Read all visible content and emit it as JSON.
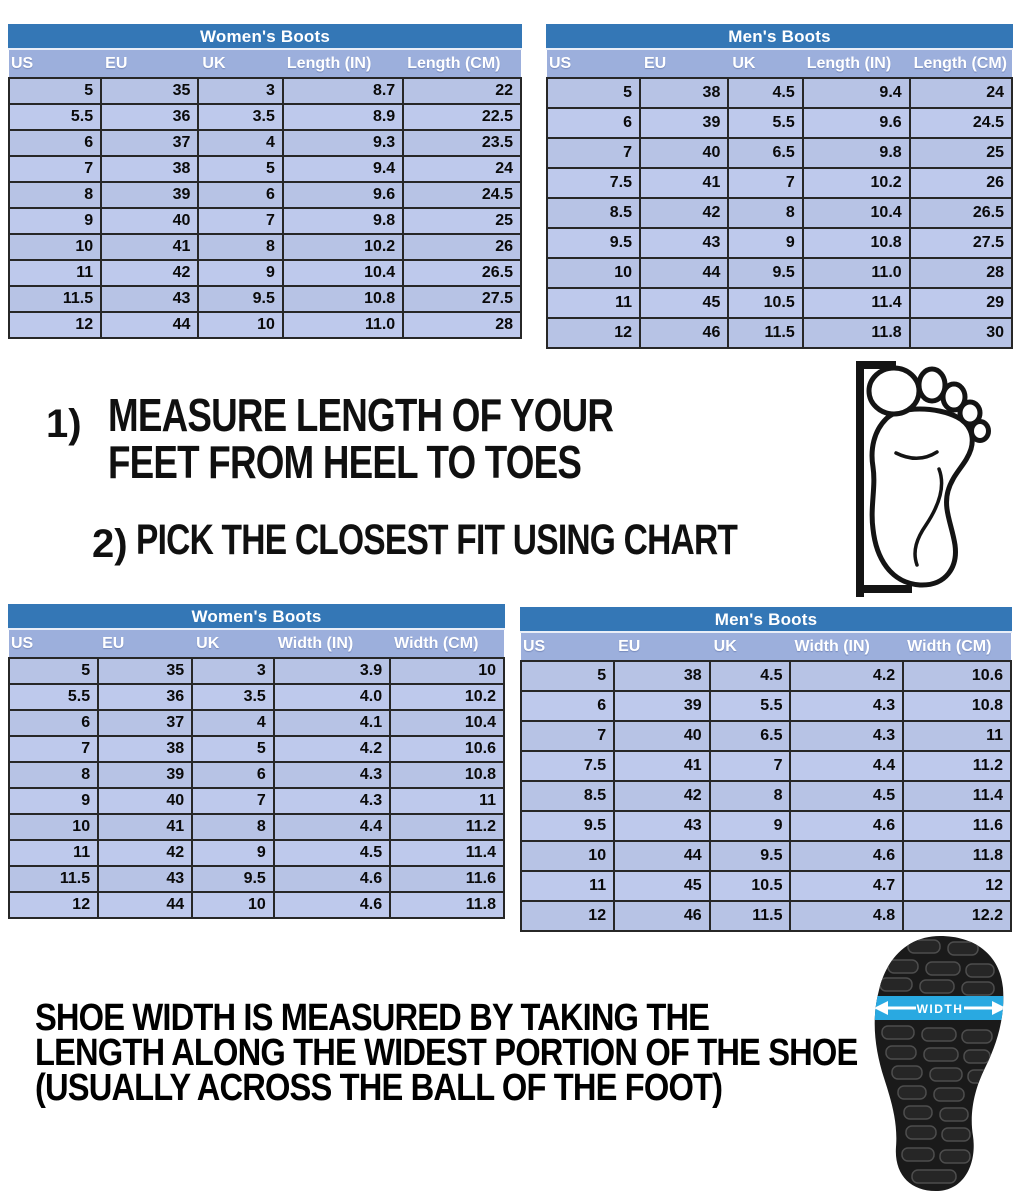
{
  "colors": {
    "title_bar": "#3477b6",
    "header_row": "#9cafdc",
    "row_light": "#b7c3e5",
    "row_alt": "#bec9ec",
    "grid_border": "#272727",
    "width_band": "#29a9e1"
  },
  "tables": {
    "womens_length": {
      "title": "Women's Boots",
      "headers": [
        "US",
        "EU",
        "UK",
        "Length (IN)",
        "Length (CM)"
      ],
      "rows": [
        [
          "5",
          "35",
          "3",
          "8.7",
          "22"
        ],
        [
          "5.5",
          "36",
          "3.5",
          "8.9",
          "22.5"
        ],
        [
          "6",
          "37",
          "4",
          "9.3",
          "23.5"
        ],
        [
          "7",
          "38",
          "5",
          "9.4",
          "24"
        ],
        [
          "8",
          "39",
          "6",
          "9.6",
          "24.5"
        ],
        [
          "9",
          "40",
          "7",
          "9.8",
          "25"
        ],
        [
          "10",
          "41",
          "8",
          "10.2",
          "26"
        ],
        [
          "11",
          "42",
          "9",
          "10.4",
          "26.5"
        ],
        [
          "11.5",
          "43",
          "9.5",
          "10.8",
          "27.5"
        ],
        [
          "12",
          "44",
          "10",
          "11.0",
          "28"
        ]
      ]
    },
    "mens_length": {
      "title": "Men's Boots",
      "headers": [
        "US",
        "EU",
        "UK",
        "Length (IN)",
        "Length (CM)"
      ],
      "rows": [
        [
          "5",
          "38",
          "4.5",
          "9.4",
          "24"
        ],
        [
          "6",
          "39",
          "5.5",
          "9.6",
          "24.5"
        ],
        [
          "7",
          "40",
          "6.5",
          "9.8",
          "25"
        ],
        [
          "7.5",
          "41",
          "7",
          "10.2",
          "26"
        ],
        [
          "8.5",
          "42",
          "8",
          "10.4",
          "26.5"
        ],
        [
          "9.5",
          "43",
          "9",
          "10.8",
          "27.5"
        ],
        [
          "10",
          "44",
          "9.5",
          "11.0",
          "28"
        ],
        [
          "11",
          "45",
          "10.5",
          "11.4",
          "29"
        ],
        [
          "12",
          "46",
          "11.5",
          "11.8",
          "30"
        ]
      ]
    },
    "womens_width": {
      "title": "Women's Boots",
      "headers": [
        "US",
        "EU",
        "UK",
        "Width (IN)",
        "Width (CM)"
      ],
      "rows": [
        [
          "5",
          "35",
          "3",
          "3.9",
          "10"
        ],
        [
          "5.5",
          "36",
          "3.5",
          "4.0",
          "10.2"
        ],
        [
          "6",
          "37",
          "4",
          "4.1",
          "10.4"
        ],
        [
          "7",
          "38",
          "5",
          "4.2",
          "10.6"
        ],
        [
          "8",
          "39",
          "6",
          "4.3",
          "10.8"
        ],
        [
          "9",
          "40",
          "7",
          "4.3",
          "11"
        ],
        [
          "10",
          "41",
          "8",
          "4.4",
          "11.2"
        ],
        [
          "11",
          "42",
          "9",
          "4.5",
          "11.4"
        ],
        [
          "11.5",
          "43",
          "9.5",
          "4.6",
          "11.6"
        ],
        [
          "12",
          "44",
          "10",
          "4.6",
          "11.8"
        ]
      ]
    },
    "mens_width": {
      "title": "Men's Boots",
      "headers": [
        "US",
        "EU",
        "UK",
        "Width (IN)",
        "Width (CM)"
      ],
      "rows": [
        [
          "5",
          "38",
          "4.5",
          "4.2",
          "10.6"
        ],
        [
          "6",
          "39",
          "5.5",
          "4.3",
          "10.8"
        ],
        [
          "7",
          "40",
          "6.5",
          "4.3",
          "11"
        ],
        [
          "7.5",
          "41",
          "7",
          "4.4",
          "11.2"
        ],
        [
          "8.5",
          "42",
          "8",
          "4.5",
          "11.4"
        ],
        [
          "9.5",
          "43",
          "9",
          "4.6",
          "11.6"
        ],
        [
          "10",
          "44",
          "9.5",
          "4.6",
          "11.8"
        ],
        [
          "11",
          "45",
          "10.5",
          "4.7",
          "12"
        ],
        [
          "12",
          "46",
          "11.5",
          "4.8",
          "12.2"
        ]
      ]
    }
  },
  "instructions": {
    "step1": {
      "num": "1)",
      "line1": "MEASURE LENGTH OF YOUR",
      "line2": "FEET FROM HEEL TO TOES"
    },
    "step2": {
      "num": "2)",
      "text": "PICK THE CLOSEST FIT USING CHART"
    }
  },
  "width_note": {
    "line1": "SHOE WIDTH IS MEASURED BY TAKING THE",
    "line2": "LENGTH ALONG THE WIDEST PORTION OF THE SHOE",
    "line3": "(USUALLY ACROSS THE BALL OF THE FOOT)"
  },
  "sole_label": "WIDTH"
}
